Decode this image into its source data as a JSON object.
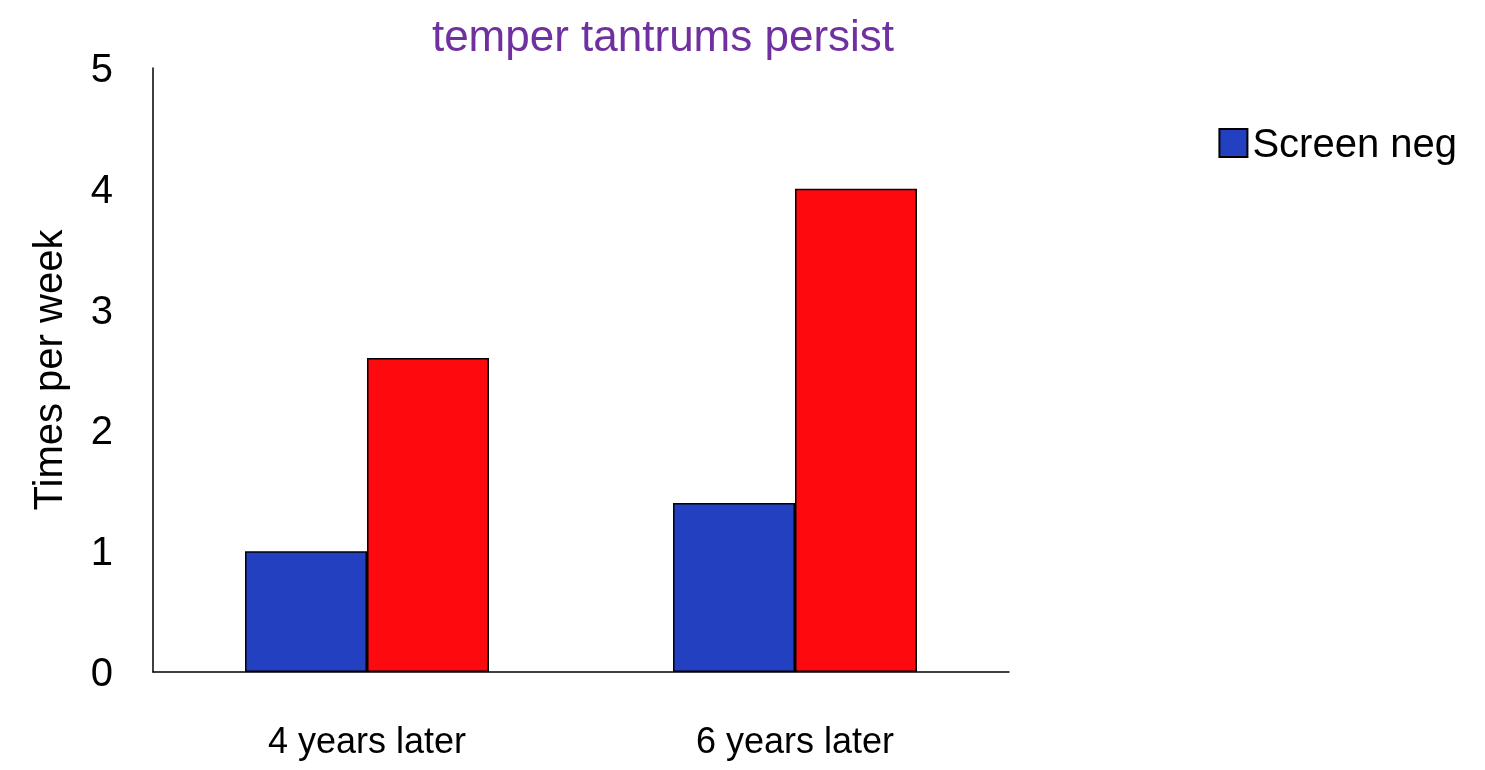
{
  "chart_data": {
    "type": "bar",
    "title": "temper tantrums persist",
    "ylabel": "Times per week",
    "categories": [
      "4 years later",
      "6 years later"
    ],
    "series": [
      {
        "name": "Screen neg",
        "color": "#2340c0",
        "values": [
          1.0,
          1.4
        ]
      },
      {
        "color": "#fc0a0e",
        "values": [
          2.6,
          4.0
        ]
      }
    ],
    "ylim": [
      0,
      5
    ],
    "yticks": [
      0,
      1,
      2,
      3,
      4,
      5
    ],
    "grid": false,
    "legend": "top right"
  }
}
